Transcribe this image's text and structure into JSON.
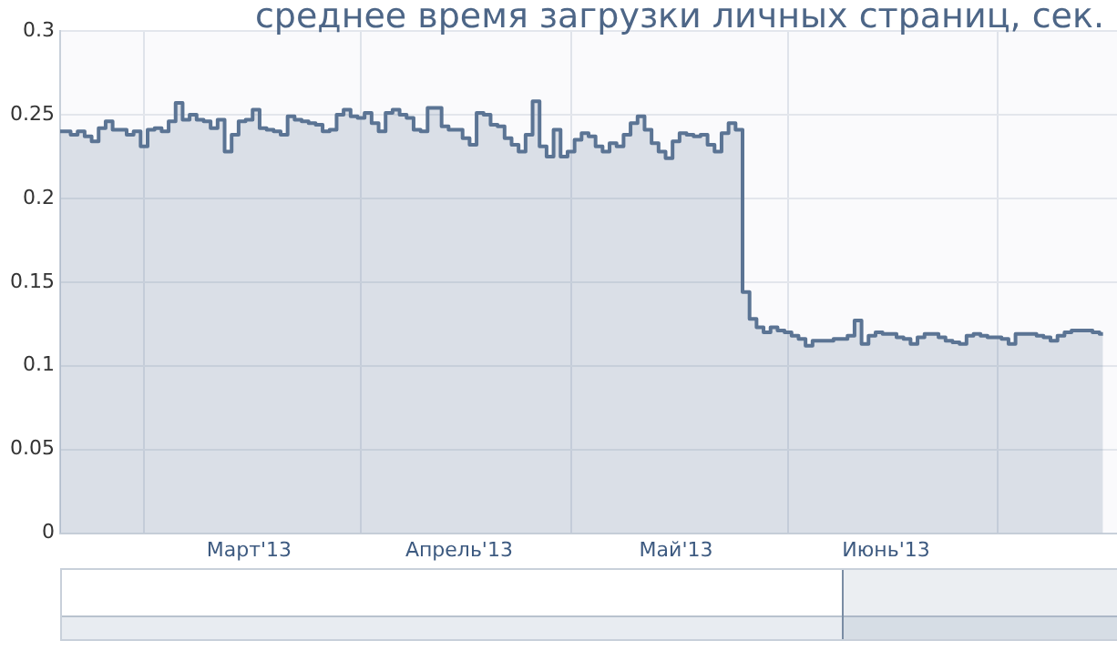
{
  "chart_data": {
    "type": "area",
    "title": "среднее время загрузки личных страниц, сек.",
    "color": "#5b7494",
    "x": [
      "2013-02-17",
      "2013-02-18",
      "2013-02-19",
      "2013-02-20",
      "2013-02-21",
      "2013-02-22",
      "2013-02-23",
      "2013-02-24",
      "2013-02-25",
      "2013-02-26",
      "2013-02-27",
      "2013-02-28",
      "2013-03-01",
      "2013-03-02",
      "2013-03-03",
      "2013-03-04",
      "2013-03-05",
      "2013-03-06",
      "2013-03-07",
      "2013-03-08",
      "2013-03-09",
      "2013-03-10",
      "2013-03-11",
      "2013-03-12",
      "2013-03-13",
      "2013-03-14",
      "2013-03-15",
      "2013-03-16",
      "2013-03-17",
      "2013-03-18",
      "2013-03-19",
      "2013-03-20",
      "2013-03-21",
      "2013-03-22",
      "2013-03-23",
      "2013-03-24",
      "2013-03-25",
      "2013-03-26",
      "2013-03-27",
      "2013-03-28",
      "2013-03-29",
      "2013-03-30",
      "2013-03-31",
      "2013-04-01",
      "2013-04-02",
      "2013-04-03",
      "2013-04-04",
      "2013-04-05",
      "2013-04-06",
      "2013-04-07",
      "2013-04-08",
      "2013-04-09",
      "2013-04-10",
      "2013-04-11",
      "2013-04-12",
      "2013-04-13",
      "2013-04-14",
      "2013-04-15",
      "2013-04-16",
      "2013-04-17",
      "2013-04-18",
      "2013-04-19",
      "2013-04-20",
      "2013-04-21",
      "2013-04-22",
      "2013-04-23",
      "2013-04-24",
      "2013-04-25",
      "2013-04-26",
      "2013-04-27",
      "2013-04-28",
      "2013-04-29",
      "2013-04-30",
      "2013-05-01",
      "2013-05-02",
      "2013-05-03",
      "2013-05-04",
      "2013-05-05",
      "2013-05-06",
      "2013-05-07",
      "2013-05-08",
      "2013-05-09",
      "2013-05-10",
      "2013-05-11",
      "2013-05-12",
      "2013-05-13",
      "2013-05-14",
      "2013-05-15",
      "2013-05-16",
      "2013-05-17",
      "2013-05-18",
      "2013-05-19",
      "2013-05-20",
      "2013-05-21",
      "2013-05-22",
      "2013-05-23",
      "2013-05-24",
      "2013-05-25",
      "2013-05-26",
      "2013-05-27",
      "2013-05-28",
      "2013-05-29",
      "2013-05-30",
      "2013-05-31",
      "2013-06-01",
      "2013-06-02",
      "2013-06-03",
      "2013-06-04",
      "2013-06-05",
      "2013-06-06",
      "2013-06-07",
      "2013-06-08",
      "2013-06-09",
      "2013-06-10",
      "2013-06-11",
      "2013-06-12",
      "2013-06-13",
      "2013-06-14",
      "2013-06-15",
      "2013-06-16",
      "2013-06-17",
      "2013-06-18",
      "2013-06-19",
      "2013-06-20",
      "2013-06-21",
      "2013-06-22",
      "2013-06-23",
      "2013-06-24",
      "2013-06-25",
      "2013-06-26",
      "2013-06-27",
      "2013-06-28",
      "2013-06-29",
      "2013-06-30",
      "2013-07-01",
      "2013-07-02",
      "2013-07-03",
      "2013-07-04",
      "2013-07-05",
      "2013-07-06",
      "2013-07-07",
      "2013-07-08",
      "2013-07-09",
      "2013-07-10",
      "2013-07-11",
      "2013-07-12",
      "2013-07-13",
      "2013-07-14",
      "2013-07-15",
      "2013-07-16"
    ],
    "values": [
      0.24,
      0.24,
      0.238,
      0.24,
      0.237,
      0.234,
      0.242,
      0.246,
      0.241,
      0.241,
      0.238,
      0.24,
      0.231,
      0.241,
      0.242,
      0.24,
      0.246,
      0.257,
      0.247,
      0.25,
      0.247,
      0.246,
      0.242,
      0.247,
      0.228,
      0.238,
      0.246,
      0.247,
      0.253,
      0.242,
      0.241,
      0.24,
      0.238,
      0.249,
      0.247,
      0.246,
      0.245,
      0.244,
      0.24,
      0.241,
      0.25,
      0.253,
      0.249,
      0.248,
      0.251,
      0.245,
      0.24,
      0.251,
      0.253,
      0.25,
      0.248,
      0.241,
      0.24,
      0.254,
      0.254,
      0.243,
      0.241,
      0.241,
      0.236,
      0.232,
      0.251,
      0.25,
      0.244,
      0.243,
      0.236,
      0.232,
      0.228,
      0.238,
      0.258,
      0.231,
      0.225,
      0.241,
      0.225,
      0.228,
      0.235,
      0.239,
      0.237,
      0.231,
      0.228,
      0.233,
      0.231,
      0.238,
      0.245,
      0.249,
      0.241,
      0.233,
      0.228,
      0.224,
      0.234,
      0.239,
      0.238,
      0.237,
      0.238,
      0.232,
      0.228,
      0.239,
      0.245,
      0.241,
      0.144,
      0.128,
      0.123,
      0.12,
      0.123,
      0.121,
      0.12,
      0.118,
      0.116,
      0.112,
      0.115,
      0.115,
      0.115,
      0.116,
      0.116,
      0.118,
      0.127,
      0.113,
      0.118,
      0.12,
      0.119,
      0.119,
      0.117,
      0.116,
      0.113,
      0.117,
      0.119,
      0.119,
      0.117,
      0.115,
      0.114,
      0.113,
      0.118,
      0.119,
      0.118,
      0.117,
      0.117,
      0.116,
      0.113,
      0.119,
      0.119,
      0.119,
      0.118,
      0.117,
      0.115,
      0.118,
      0.12,
      0.121,
      0.121,
      0.121,
      0.12,
      0.119
    ],
    "xlim": [
      "2013-02-17",
      "2013-07-18"
    ],
    "xticks": [
      {
        "value": "2013-03-01",
        "label": null
      },
      {
        "value": "2013-03-16",
        "label": "Март'13"
      },
      {
        "value": "2013-04-01",
        "label": null
      },
      {
        "value": "2013-04-15",
        "label": "Апрель'13"
      },
      {
        "value": "2013-05-01",
        "label": null
      },
      {
        "value": "2013-05-16",
        "label": "Май'13"
      },
      {
        "value": "2013-06-01",
        "label": null
      },
      {
        "value": "2013-06-15",
        "label": "Июнь'13"
      },
      {
        "value": "2013-07-01",
        "label": null
      }
    ],
    "ylim": [
      0,
      0.3
    ],
    "yticks": [
      0,
      0.05,
      0.1,
      0.15,
      0.2,
      0.25,
      0.3
    ],
    "grid": true
  }
}
